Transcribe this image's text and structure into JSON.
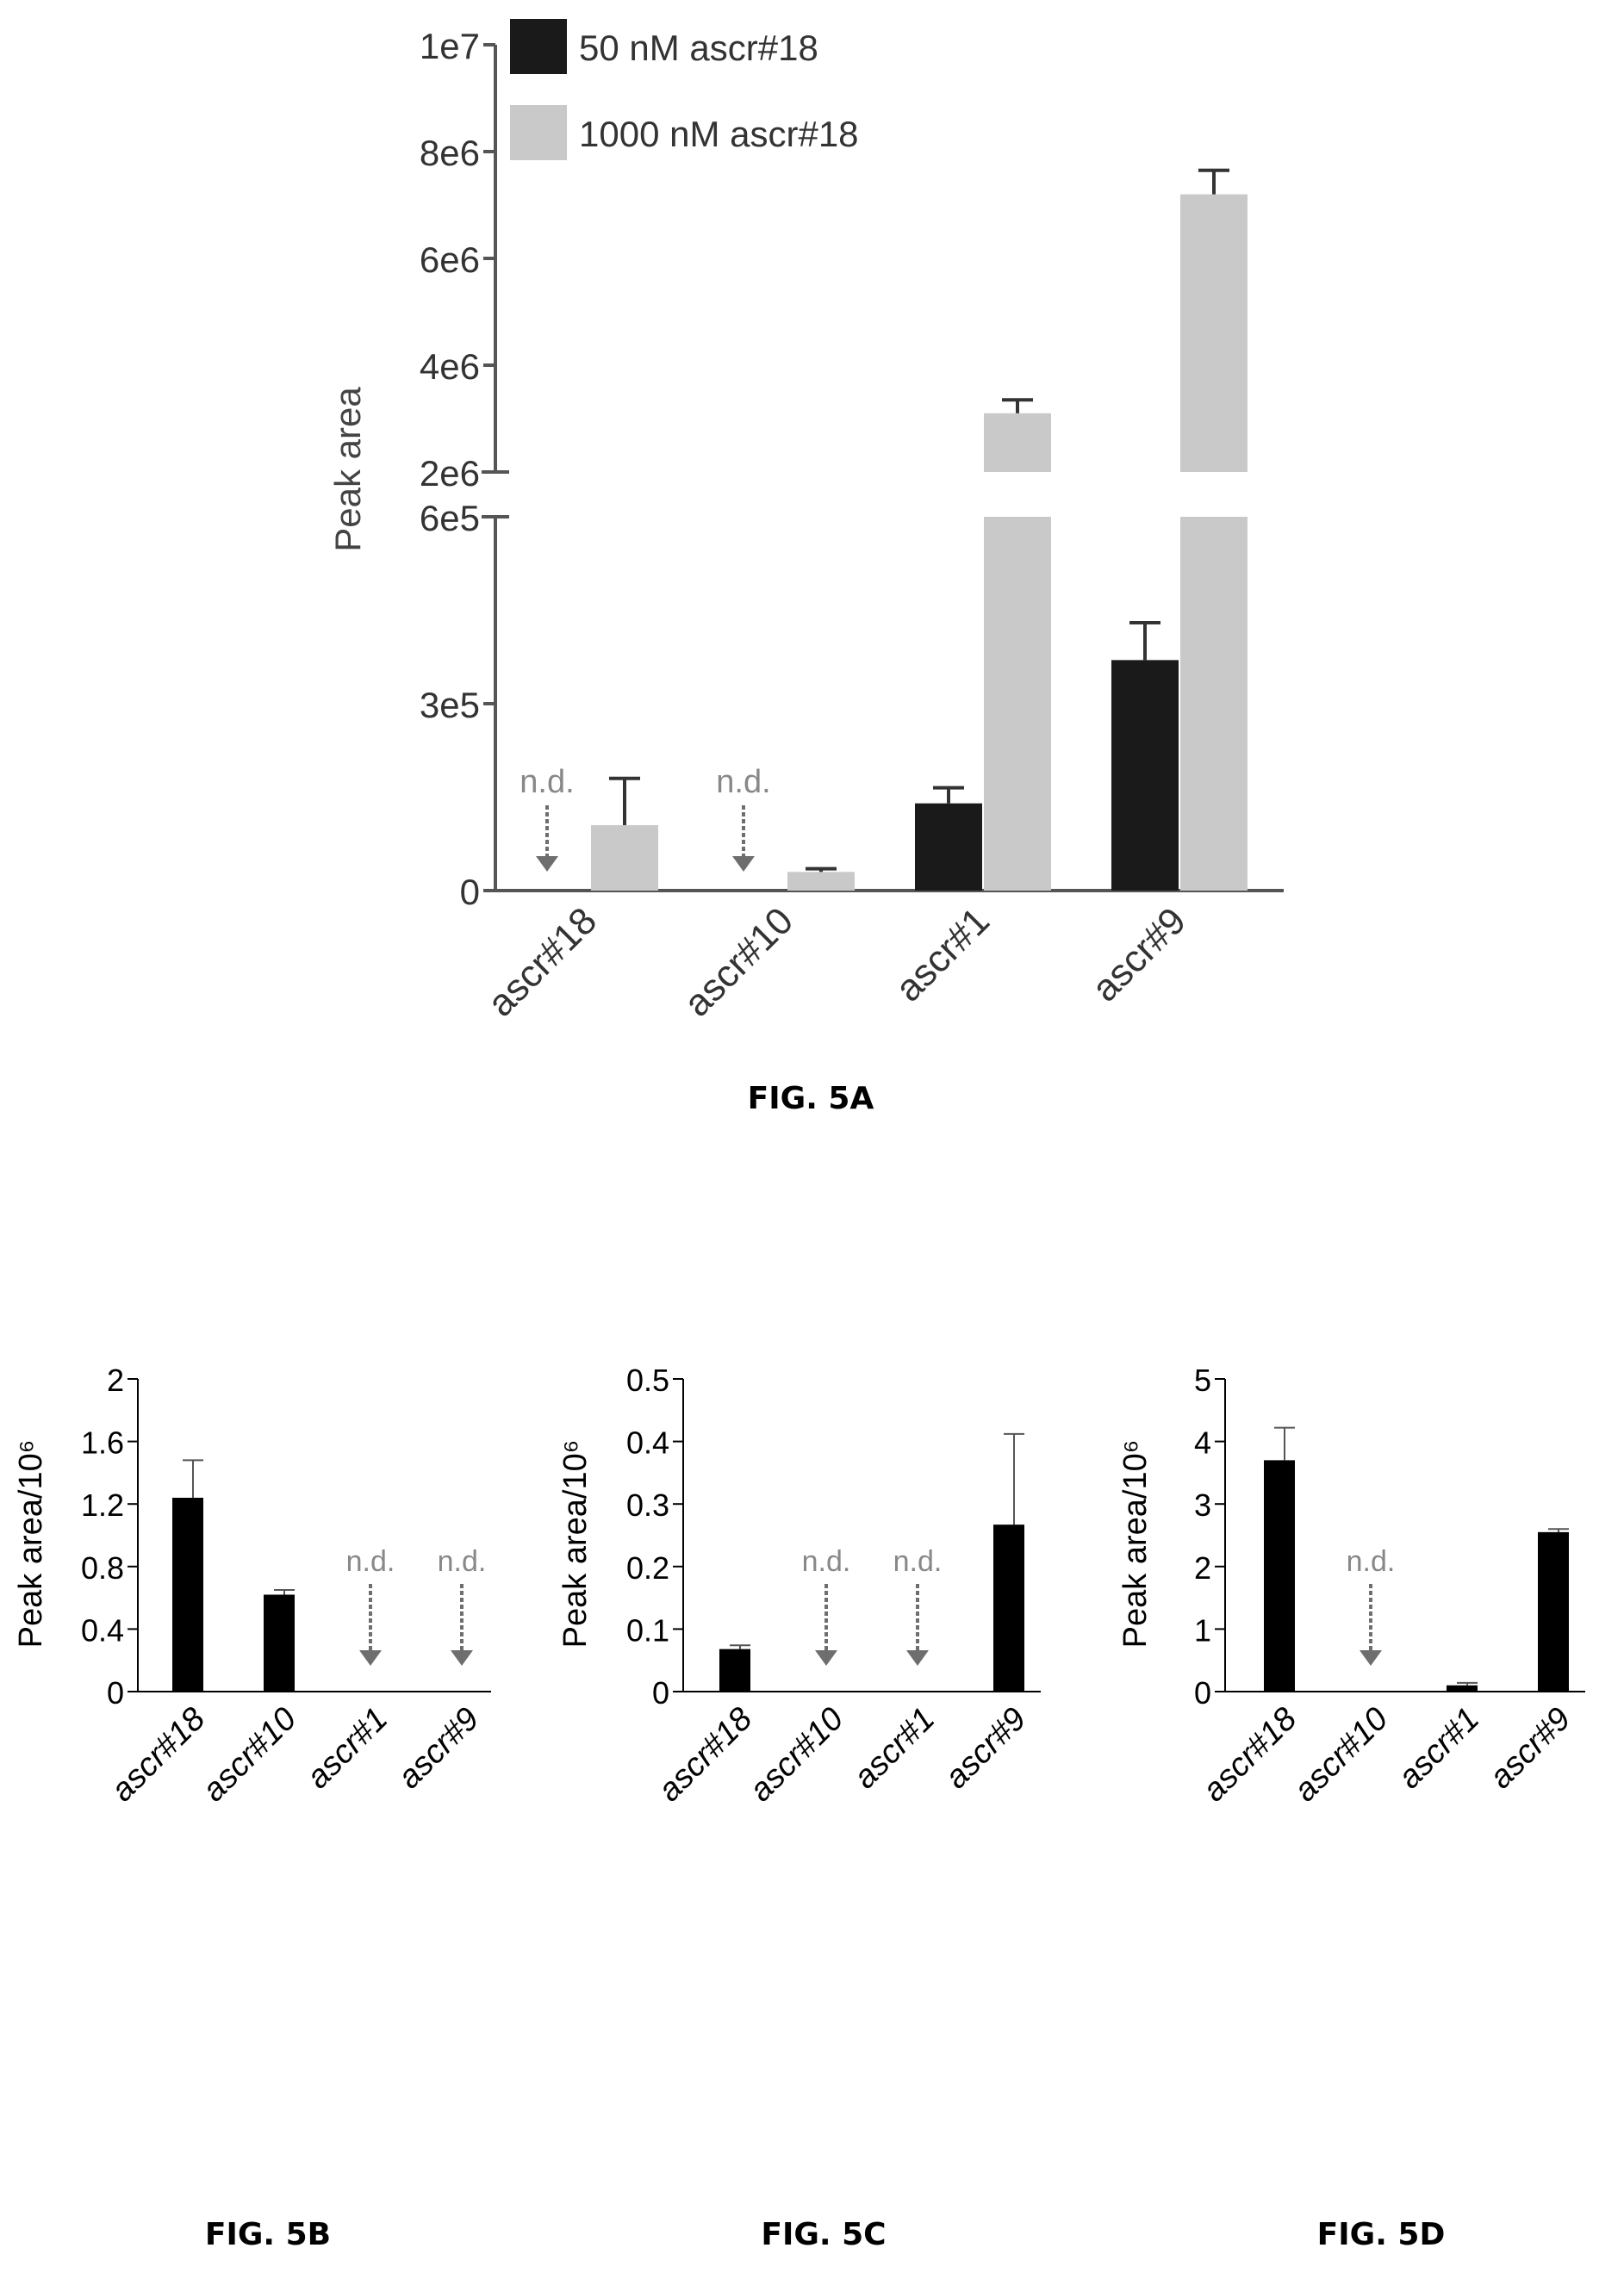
{
  "chart_data": [
    {
      "id": "5A",
      "type": "bar",
      "caption": "FIG. 5A",
      "ylabel": "Peak area",
      "axis_break": true,
      "ylim_lower": [
        0,
        600000
      ],
      "ylim_upper": [
        2000000,
        10000000
      ],
      "yticks_lower": [
        "0",
        "3e5",
        "6e5"
      ],
      "yticks_upper": [
        "2e6",
        "4e6",
        "6e6",
        "8e6",
        "1e7"
      ],
      "categories": [
        "ascr#18",
        "ascr#10",
        "ascr#1",
        "ascr#9"
      ],
      "legend_position": "top-left",
      "series": [
        {
          "name": "50 nM ascr#18",
          "color": "#1a1a1a",
          "values": [
            null,
            null,
            140000,
            370000
          ],
          "errors": [
            null,
            null,
            25000,
            60000
          ],
          "labels": [
            "n.d.",
            "n.d.",
            "",
            ""
          ]
        },
        {
          "name": "1000 nM ascr#18",
          "color": "#c9c9c9",
          "values": [
            105000,
            30000,
            3100000,
            7200000
          ],
          "errors": [
            75000,
            5000,
            250000,
            450000
          ],
          "labels": [
            "",
            "",
            "",
            ""
          ]
        }
      ]
    },
    {
      "id": "5B",
      "type": "bar",
      "caption": "FIG. 5B",
      "ylabel": "Peak area/10⁶",
      "ylim": [
        0,
        2
      ],
      "yticks": [
        "0",
        "0.4",
        "0.8",
        "1.2",
        "1.6",
        "2"
      ],
      "categories": [
        "ascr#18",
        "ascr#10",
        "ascr#1",
        "ascr#9"
      ],
      "values": [
        1.24,
        0.62,
        null,
        null
      ],
      "errors": [
        0.24,
        0.03,
        null,
        null
      ],
      "labels": [
        "",
        "",
        "n.d.",
        "n.d."
      ]
    },
    {
      "id": "5C",
      "type": "bar",
      "caption": "FIG. 5C",
      "ylabel": "Peak area/10⁶",
      "ylim": [
        0,
        0.5
      ],
      "yticks": [
        "0",
        "0.1",
        "0.2",
        "0.3",
        "0.4",
        "0.5"
      ],
      "categories": [
        "ascr#18",
        "ascr#10",
        "ascr#1",
        "ascr#9"
      ],
      "values": [
        0.068,
        null,
        null,
        0.267
      ],
      "errors": [
        0.006,
        null,
        null,
        0.145
      ],
      "labels": [
        "",
        "n.d.",
        "n.d.",
        ""
      ]
    },
    {
      "id": "5D",
      "type": "bar",
      "caption": "FIG. 5D",
      "ylabel": "Peak area/10⁶",
      "ylim": [
        0,
        5
      ],
      "yticks": [
        "0",
        "1",
        "2",
        "3",
        "4",
        "5"
      ],
      "categories": [
        "ascr#18",
        "ascr#10",
        "ascr#1",
        "ascr#9"
      ],
      "values": [
        3.7,
        null,
        0.1,
        2.55
      ],
      "errors": [
        0.52,
        null,
        0.04,
        0.05
      ],
      "labels": [
        "",
        "n.d.",
        "",
        ""
      ]
    }
  ]
}
